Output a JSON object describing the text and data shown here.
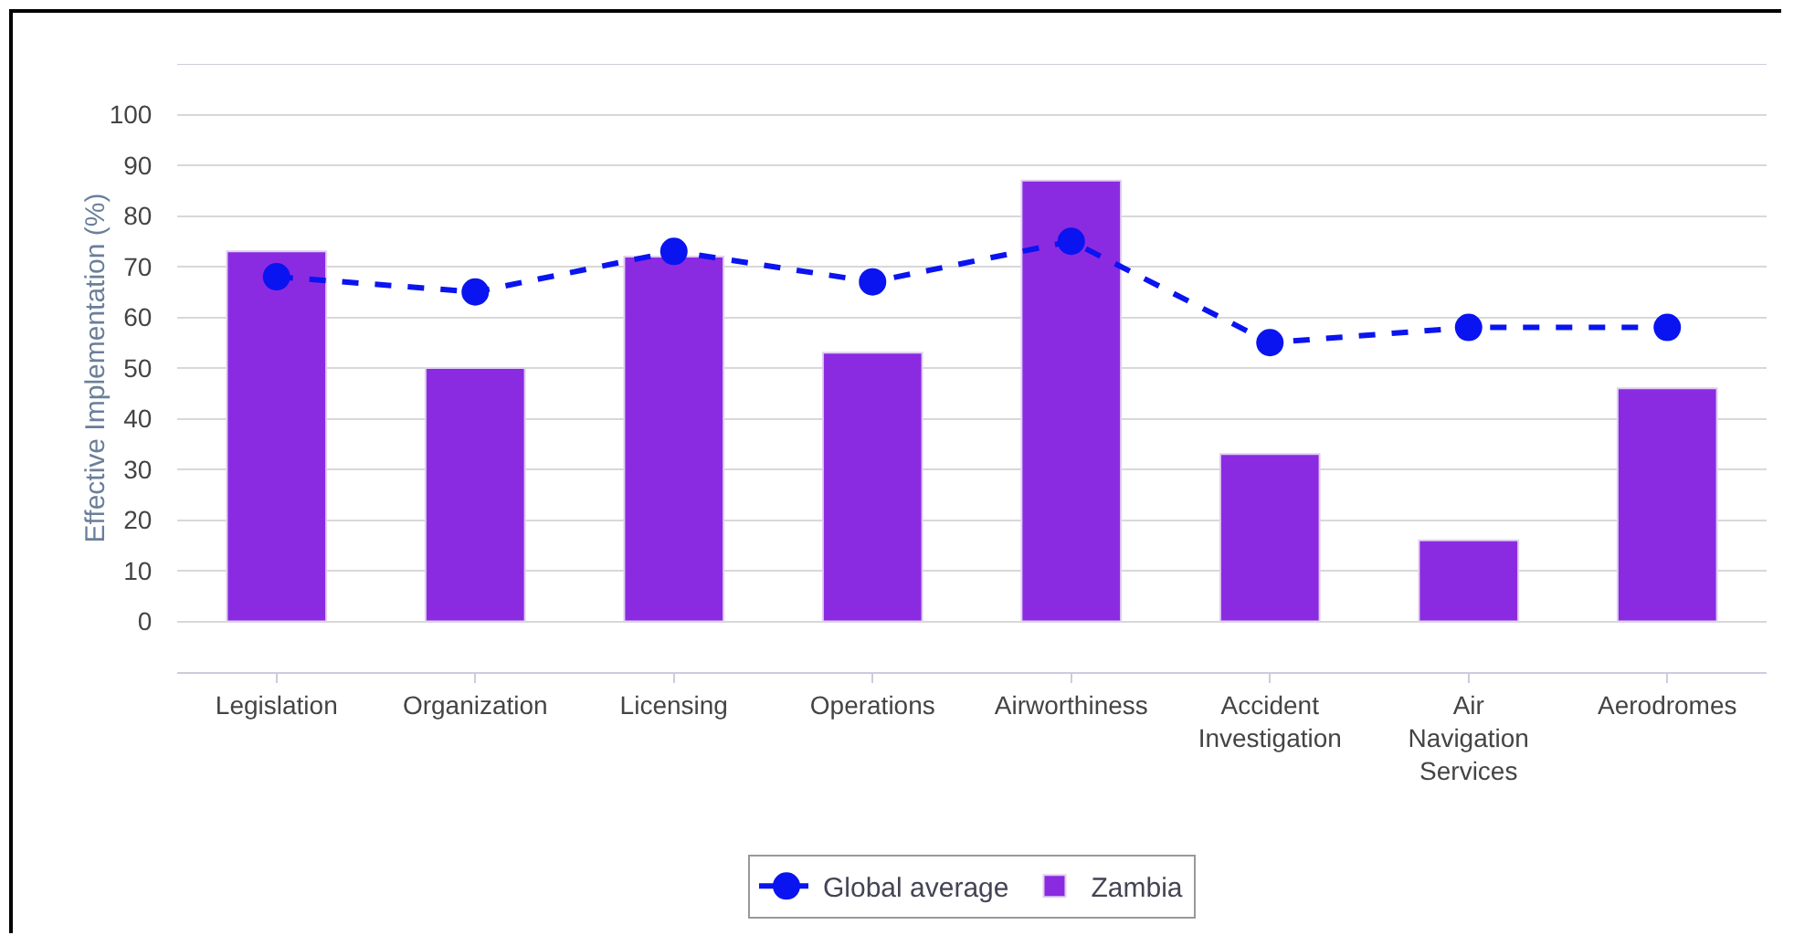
{
  "chart_data": {
    "type": "bar",
    "ylabel": "Effective Implementation (%)",
    "categories": [
      "Legislation",
      "Organization",
      "Licensing",
      "Operations",
      "Airworthiness",
      "Accident Investigation",
      "Air Navigation Services",
      "Aerodromes"
    ],
    "series": [
      {
        "name": "Global average",
        "type": "line",
        "color": "#0a14f0",
        "line_style": "dashed",
        "marker": "circle",
        "values": [
          68,
          65,
          73,
          67,
          75,
          55,
          58,
          58
        ]
      },
      {
        "name": "Zambia",
        "color": "#8a2be2",
        "values": [
          73,
          50,
          72,
          53,
          87,
          33,
          16,
          46
        ]
      }
    ],
    "ylim": [
      -10,
      110
    ],
    "yticks": [
      0,
      10,
      20,
      30,
      40,
      50,
      60,
      70,
      80,
      90,
      100
    ],
    "grid": "y",
    "legend": "bottom"
  }
}
